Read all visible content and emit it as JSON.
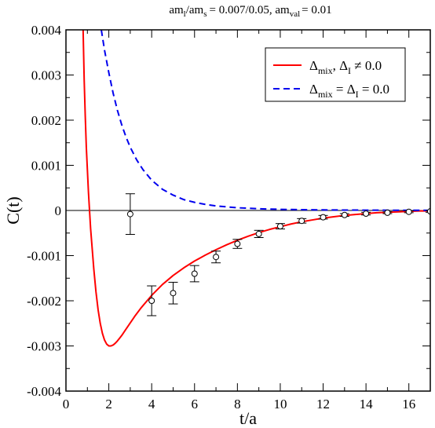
{
  "chart_data": {
    "type": "line",
    "title_parts": {
      "a": "am",
      "a_sub": "l",
      "b": "/am",
      "b_sub": "s",
      "c": "= 0.007/0.05, am",
      "c_sub": "val",
      "d": "= 0.01"
    },
    "xlabel": "t/a",
    "ylabel": "C(t)",
    "xlim": [
      0,
      17
    ],
    "ylim": [
      -0.004,
      0.004
    ],
    "x_ticks": [
      "0",
      "2",
      "4",
      "6",
      "8",
      "10",
      "12",
      "14",
      "16"
    ],
    "y_ticks": [
      "-0.004",
      "-0.003",
      "-0.002",
      "-0.001",
      "0",
      "0.001",
      "0.002",
      "0.003",
      "0.004"
    ],
    "grid": false,
    "zero_line": true,
    "legend": {
      "position": "top-right",
      "entries": [
        {
          "label_main": "Δ",
          "label_sub": "mix",
          "label_rest": ", Δ",
          "label_sub2": "I",
          "label_end": " ≠ 0.0",
          "color": "#ff0000",
          "dash": "solid"
        },
        {
          "label_main": "Δ",
          "label_sub": "mix",
          "label_rest": " = Δ",
          "label_sub2": "I",
          "label_end": " = 0.0",
          "color": "#0000ee",
          "dash": "dashed"
        }
      ]
    },
    "series": [
      {
        "name": "Δmix, ΔI ≠ 0.0",
        "style": "line",
        "color": "#ff0000",
        "dash": "solid",
        "x": [
          0.8,
          0.85,
          0.9,
          0.95,
          1.0,
          1.05,
          1.1,
          1.15,
          1.2,
          1.3,
          1.4,
          1.5,
          1.6,
          1.7,
          1.8,
          1.9,
          2.0,
          2.1,
          2.2,
          2.3,
          2.4,
          2.5,
          2.6,
          2.8,
          3.0,
          3.2,
          3.5,
          4.0,
          4.5,
          5.0,
          5.5,
          6.0,
          6.5,
          7.0,
          7.5,
          8.0,
          8.5,
          9.0,
          9.5,
          10.0,
          10.5,
          11.0,
          11.5,
          12.0,
          12.5,
          13.0,
          13.5,
          14.0,
          14.5,
          15.0,
          15.5,
          16.0,
          16.5,
          17.0
        ],
        "y": [
          0.004,
          0.0029,
          0.0021,
          0.0014,
          0.0009,
          0.0004,
          0.0,
          -0.0004,
          -0.0007,
          -0.0013,
          -0.0018,
          -0.0022,
          -0.0025,
          -0.00272,
          -0.00287,
          -0.00296,
          -0.003,
          -0.003,
          -0.00298,
          -0.00294,
          -0.00289,
          -0.00283,
          -0.00277,
          -0.00263,
          -0.00249,
          -0.00235,
          -0.00216,
          -0.00188,
          -0.00164,
          -0.00144,
          -0.00127,
          -0.00112,
          -0.00099,
          -0.00087,
          -0.00076,
          -0.00066,
          -0.00057,
          -0.00049,
          -0.00042,
          -0.00036,
          -0.0003,
          -0.00025,
          -0.00021,
          -0.00017,
          -0.00014,
          -0.00011,
          -9e-05,
          -7e-05,
          -5e-05,
          -4e-05,
          -3e-05,
          -2e-05,
          -1e-05,
          -1e-05
        ]
      },
      {
        "name": "Δmix = ΔI = 0.0",
        "style": "line",
        "color": "#0000ee",
        "dash": "dashed",
        "x": [
          1.65,
          1.7,
          1.8,
          1.9,
          2.0,
          2.2,
          2.4,
          2.6,
          2.8,
          3.0,
          3.3,
          3.6,
          4.0,
          4.5,
          5.0,
          5.5,
          6.0,
          6.5,
          7.0,
          8.0,
          9.0,
          10.0,
          11.0,
          12.0,
          13.0,
          14.0,
          15.0,
          16.0,
          17.0
        ],
        "y": [
          0.004,
          0.00385,
          0.00355,
          0.0033,
          0.00305,
          0.0026,
          0.00222,
          0.0019,
          0.00163,
          0.0014,
          0.00112,
          0.0009,
          0.00067,
          0.00047,
          0.00034,
          0.00024,
          0.00018,
          0.000135,
          0.0001,
          6e-05,
          3.8e-05,
          2.5e-05,
          1.7e-05,
          1.2e-05,
          9e-06,
          7e-06,
          5e-06,
          4e-06,
          3e-06
        ]
      },
      {
        "name": "data",
        "style": "points",
        "color": "#000000",
        "x": [
          3,
          4,
          5,
          6,
          7,
          8,
          9,
          10,
          11,
          12,
          13,
          14,
          15,
          16,
          17
        ],
        "y": [
          -8e-05,
          -0.002,
          -0.00183,
          -0.0014,
          -0.00103,
          -0.00074,
          -0.00052,
          -0.00035,
          -0.00023,
          -0.00015,
          -0.0001,
          -7e-05,
          -5e-05,
          -3e-05,
          -2e-05
        ],
        "err": [
          0.00045,
          0.00033,
          0.00024,
          0.00018,
          0.00013,
          0.0001,
          8e-05,
          6e-05,
          5e-05,
          4e-05,
          3e-05,
          3e-05,
          2e-05,
          2e-05,
          2e-05
        ]
      }
    ]
  }
}
